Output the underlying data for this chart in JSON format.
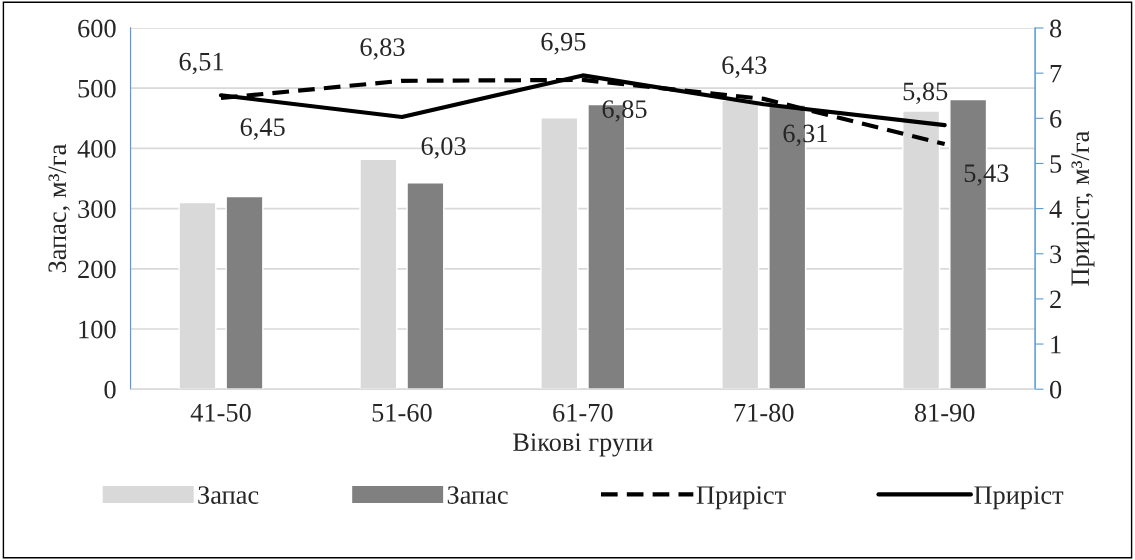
{
  "chart_data": {
    "type": "bar",
    "xlabel": "Вікові групи",
    "ylabel": "Запас, м³/га",
    "y2label": "Приріст, м³/га",
    "categories": [
      "41-50",
      "51-60",
      "61-70",
      "71-80",
      "81-90"
    ],
    "series": [
      {
        "name": "Запас",
        "color": "#d9d9d9",
        "values": [
          310,
          382,
          451,
          480,
          462
        ]
      },
      {
        "name": "Запас",
        "color": "#808080",
        "values": [
          320,
          343,
          473,
          472,
          481
        ]
      },
      {
        "name": "Приріст",
        "type": "line",
        "axis": "y2",
        "line_style": "dashed",
        "color": "#000000",
        "values": [
          6.45,
          6.83,
          6.85,
          6.43,
          5.43
        ],
        "value_labels": [
          "6,45",
          "6,83",
          "6,85",
          "6,43",
          "5,43"
        ]
      },
      {
        "name": "Приріст",
        "type": "line",
        "axis": "y2",
        "line_style": "solid",
        "color": "#000000",
        "values": [
          6.51,
          6.03,
          6.95,
          6.31,
          5.85
        ],
        "value_labels": [
          "6,51",
          "6,03",
          "6,95",
          "6,31",
          "5,85"
        ]
      }
    ],
    "ylim": [
      0,
      600
    ],
    "yticks": [
      0,
      100,
      200,
      300,
      400,
      500,
      600
    ],
    "y2lim": [
      0,
      8
    ],
    "y2ticks": [
      0,
      1,
      2,
      3,
      4,
      5,
      6,
      7,
      8
    ],
    "grid": "y",
    "legend": "bottom"
  }
}
